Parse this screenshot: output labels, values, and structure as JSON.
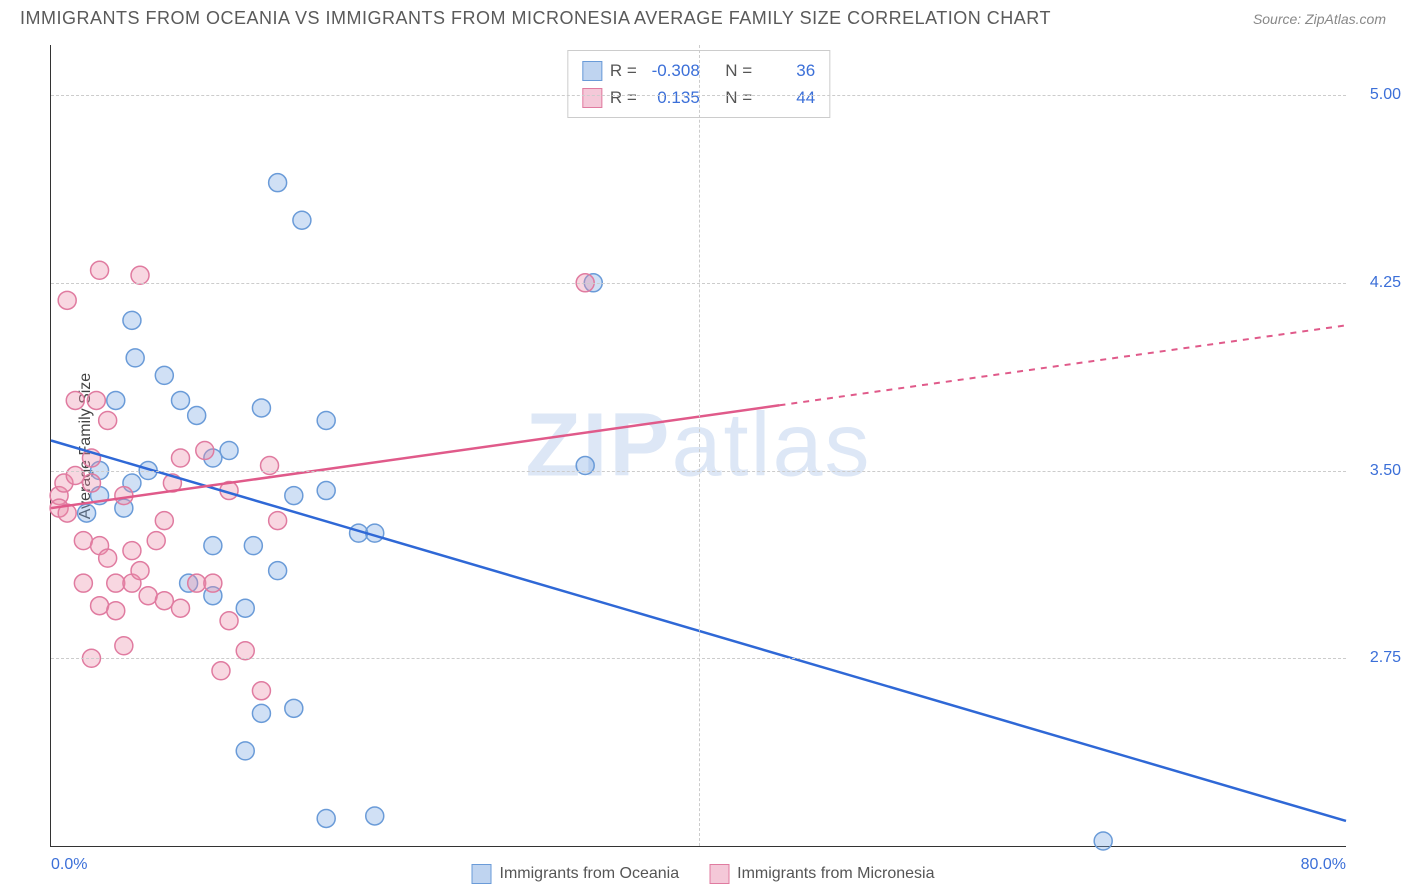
{
  "title": "IMMIGRANTS FROM OCEANIA VS IMMIGRANTS FROM MICRONESIA AVERAGE FAMILY SIZE CORRELATION CHART",
  "source": "Source: ZipAtlas.com",
  "watermark_a": "ZIP",
  "watermark_b": "atlas",
  "ylabel": "Average Family Size",
  "chart": {
    "type": "scatter-with-regression",
    "xlim": [
      0,
      80
    ],
    "ylim": [
      2.0,
      5.2
    ],
    "yticks": [
      2.75,
      3.5,
      4.25,
      5.0
    ],
    "ytick_labels": [
      "2.75",
      "3.50",
      "4.25",
      "5.00"
    ],
    "xgrid": [
      40
    ],
    "xtick_min_label": "0.0%",
    "xtick_max_label": "80.0%",
    "background_color": "#ffffff",
    "grid_color": "#cccccc",
    "axis_color": "#333333",
    "series": [
      {
        "name": "Immigrants from Oceania",
        "color_fill": "rgba(120,165,225,0.35)",
        "color_stroke": "#6a9bd8",
        "swatch_fill": "#bfd4f0",
        "swatch_border": "#6a9bd8",
        "R": "-0.308",
        "N": "36",
        "reg_line_color": "#2f68d6",
        "reg_y_at_xmin": 3.62,
        "reg_y_at_xmax": 2.1,
        "reg_dash_from": 80,
        "marker_r": 9,
        "points": [
          [
            2.2,
            3.33
          ],
          [
            4.0,
            3.78
          ],
          [
            5.0,
            4.1
          ],
          [
            5.2,
            3.95
          ],
          [
            5.0,
            3.45
          ],
          [
            8.0,
            3.78
          ],
          [
            9.0,
            3.72
          ],
          [
            12.0,
            2.38
          ],
          [
            13.0,
            3.75
          ],
          [
            13.0,
            2.53
          ],
          [
            14.0,
            4.65
          ],
          [
            15.0,
            3.4
          ],
          [
            15.0,
            2.55
          ],
          [
            15.5,
            4.5
          ],
          [
            17.0,
            3.42
          ],
          [
            17.0,
            2.11
          ],
          [
            10.0,
            3.55
          ],
          [
            10.0,
            3.2
          ],
          [
            10.0,
            3.0
          ],
          [
            12.5,
            3.2
          ],
          [
            12.0,
            2.95
          ],
          [
            7.0,
            3.88
          ],
          [
            3.0,
            3.4
          ],
          [
            3.0,
            3.5
          ],
          [
            19.0,
            3.25
          ],
          [
            20.0,
            3.25
          ],
          [
            14.0,
            3.1
          ],
          [
            11.0,
            3.58
          ],
          [
            6.0,
            3.5
          ],
          [
            8.5,
            3.05
          ],
          [
            20.0,
            2.12
          ],
          [
            17.0,
            3.7
          ],
          [
            33.5,
            4.25
          ],
          [
            65.0,
            2.02
          ],
          [
            33.0,
            3.52
          ],
          [
            4.5,
            3.35
          ]
        ]
      },
      {
        "name": "Immigrants from Micronesia",
        "color_fill": "rgba(235,140,170,0.35)",
        "color_stroke": "#e07ba0",
        "swatch_fill": "#f4c8d8",
        "swatch_border": "#e07ba0",
        "R": "0.135",
        "N": "44",
        "reg_line_color": "#e05a8a",
        "reg_y_at_xmin": 3.35,
        "reg_y_at_xmax": 4.08,
        "reg_dash_from": 45,
        "marker_r": 9,
        "points": [
          [
            0.5,
            3.4
          ],
          [
            0.5,
            3.35
          ],
          [
            0.8,
            3.45
          ],
          [
            1.0,
            3.33
          ],
          [
            1.0,
            4.18
          ],
          [
            1.5,
            3.78
          ],
          [
            1.5,
            3.48
          ],
          [
            2.0,
            3.22
          ],
          [
            2.0,
            3.05
          ],
          [
            2.5,
            3.45
          ],
          [
            2.5,
            3.55
          ],
          [
            2.5,
            2.75
          ],
          [
            2.8,
            3.78
          ],
          [
            3.0,
            4.3
          ],
          [
            3.0,
            3.2
          ],
          [
            3.0,
            2.96
          ],
          [
            3.5,
            3.7
          ],
          [
            3.5,
            3.15
          ],
          [
            4.0,
            3.05
          ],
          [
            4.0,
            2.94
          ],
          [
            4.5,
            3.4
          ],
          [
            4.5,
            2.8
          ],
          [
            5.0,
            3.18
          ],
          [
            5.0,
            3.05
          ],
          [
            5.5,
            3.1
          ],
          [
            5.5,
            4.28
          ],
          [
            6.0,
            3.0
          ],
          [
            6.5,
            3.22
          ],
          [
            7.0,
            3.3
          ],
          [
            7.0,
            2.98
          ],
          [
            7.5,
            3.45
          ],
          [
            8.0,
            2.95
          ],
          [
            8.0,
            3.55
          ],
          [
            9.0,
            3.05
          ],
          [
            9.5,
            3.58
          ],
          [
            10.0,
            3.05
          ],
          [
            10.5,
            2.7
          ],
          [
            11.0,
            3.42
          ],
          [
            11.0,
            2.9
          ],
          [
            12.0,
            2.78
          ],
          [
            13.0,
            2.62
          ],
          [
            13.5,
            3.52
          ],
          [
            14.0,
            3.3
          ],
          [
            33.0,
            4.25
          ]
        ]
      }
    ]
  },
  "stats_labels": {
    "R": "R =",
    "N": "N ="
  },
  "legend": {
    "oceania": "Immigrants from Oceania",
    "micronesia": "Immigrants from Micronesia"
  }
}
